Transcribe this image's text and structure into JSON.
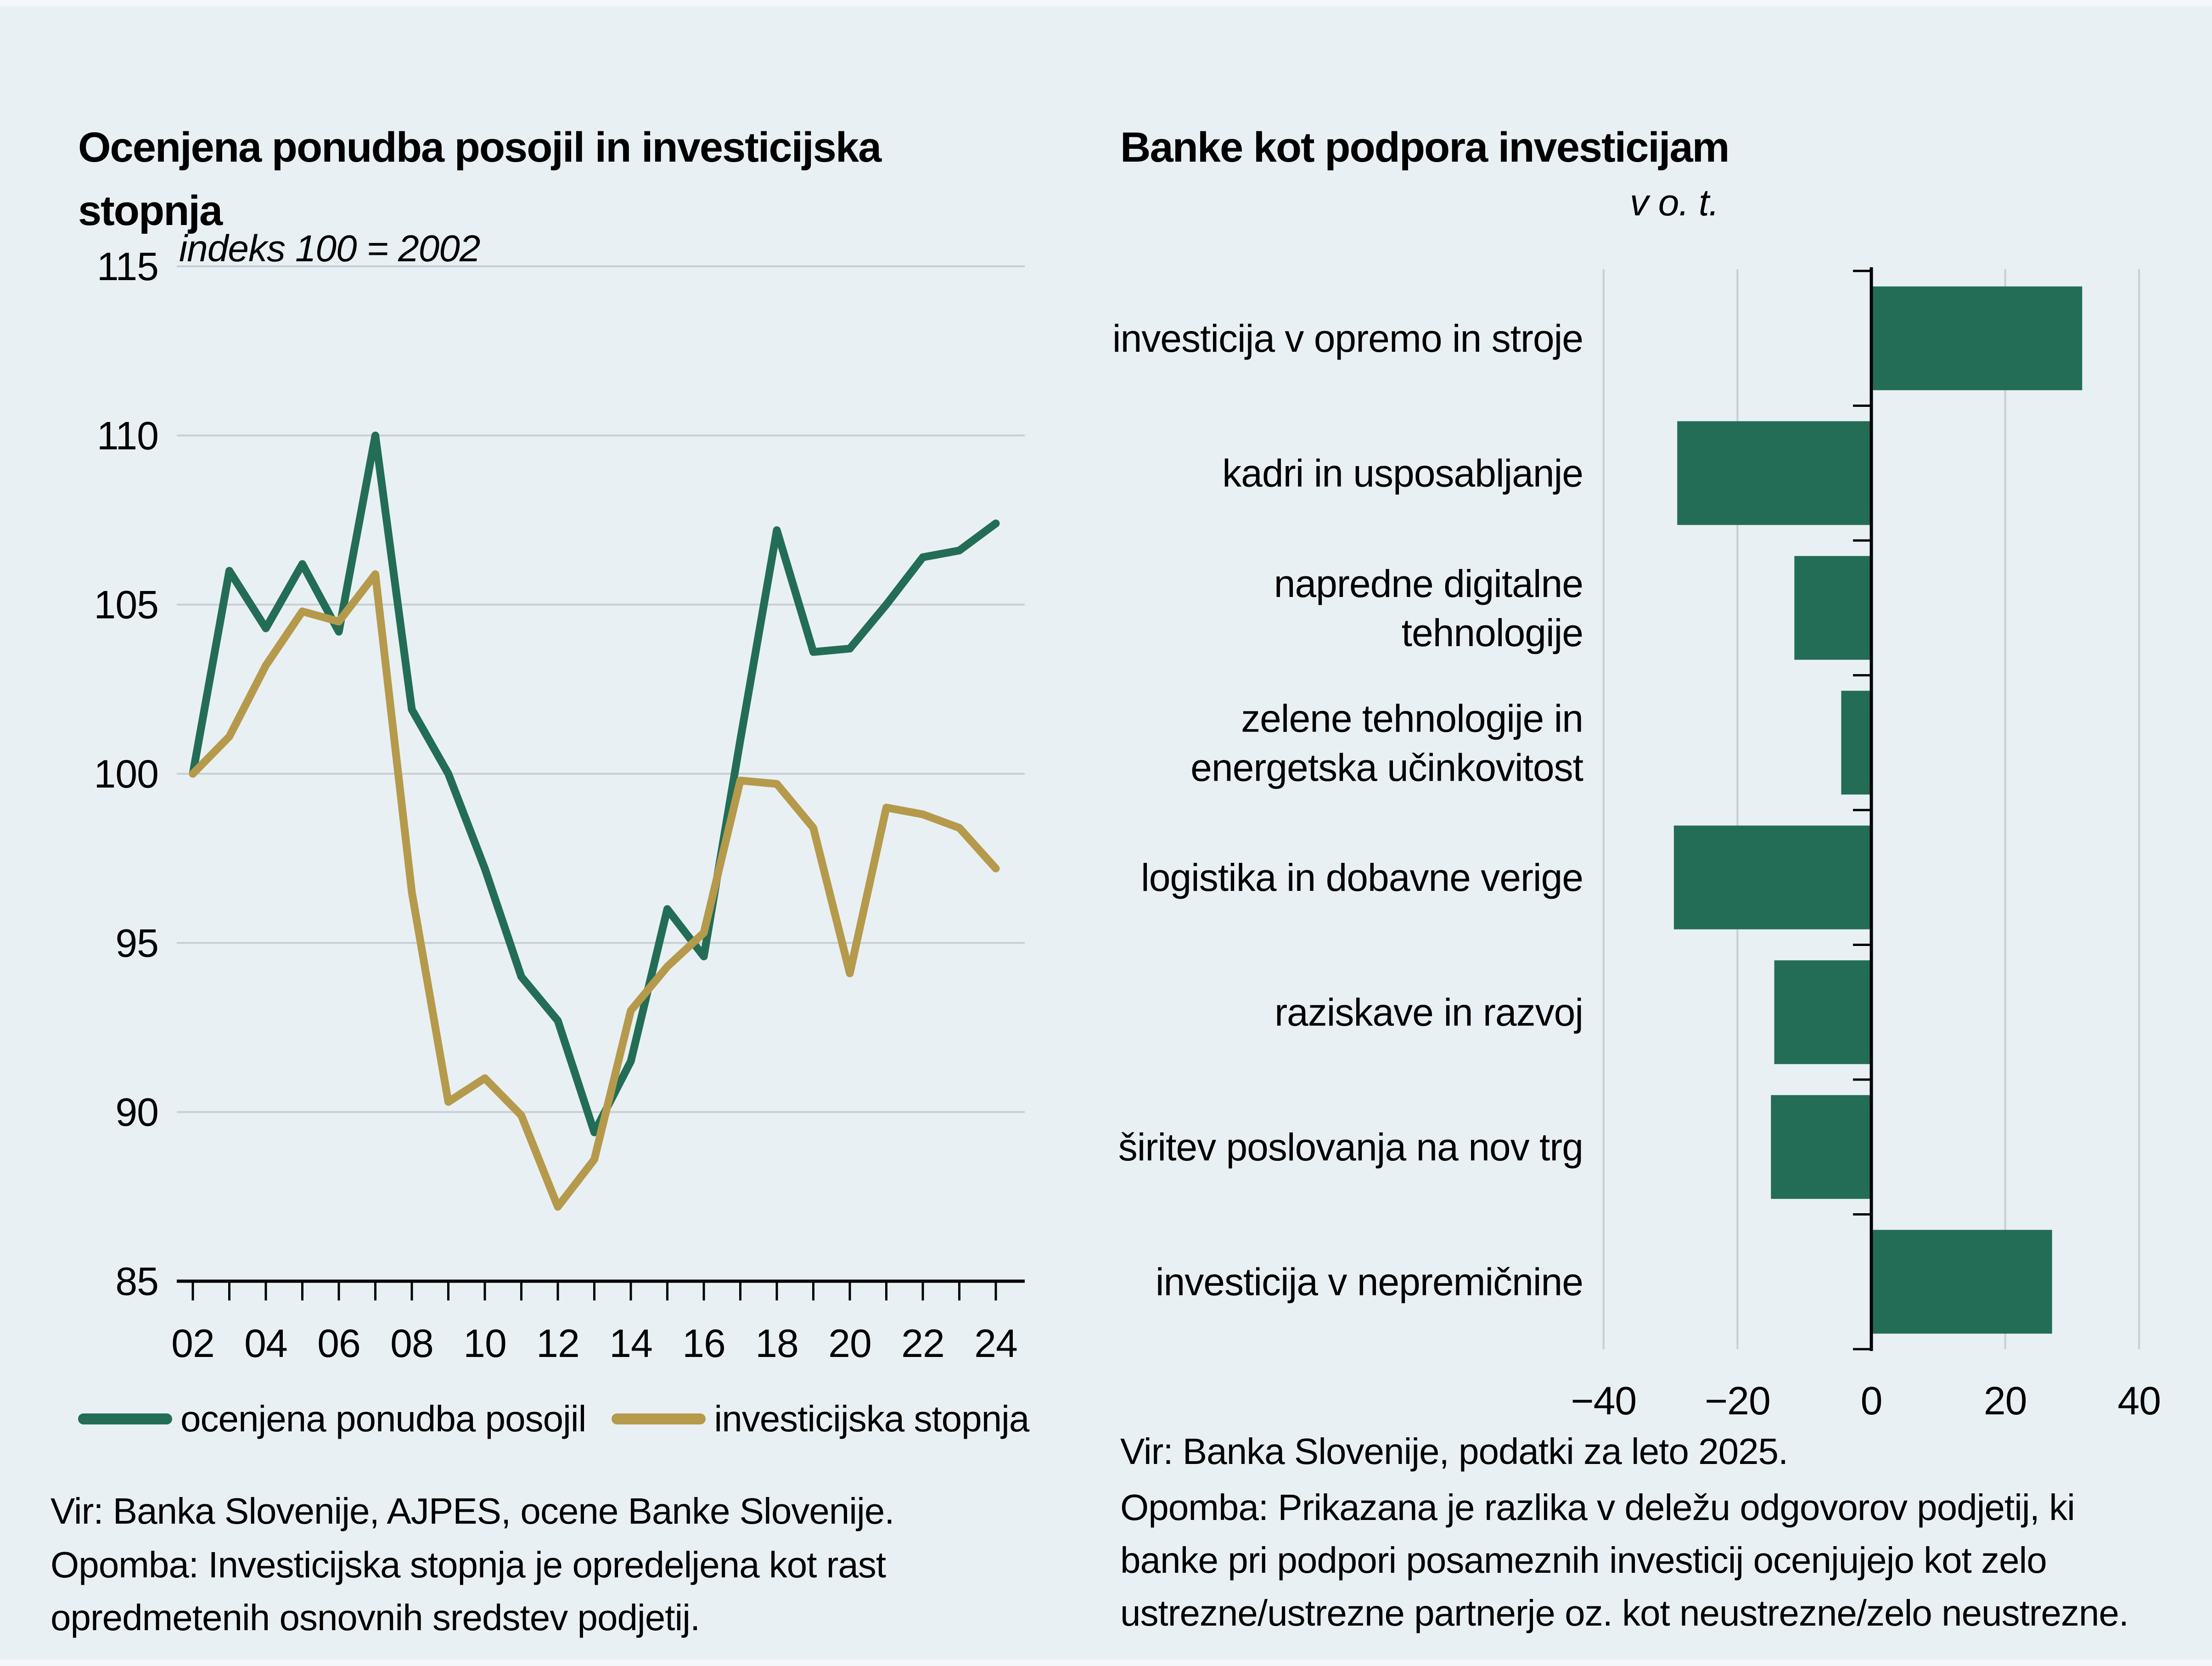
{
  "page": {
    "background_color": "#e9f0f4",
    "accent_green": "#236d56",
    "accent_gold": "#b59a4c",
    "grid_color": "#c7ced4"
  },
  "left_panel": {
    "title": "Ocenjena ponudba posojil in investicijska stopnja",
    "subtitle": "indeks 100 = 2002",
    "legend": [
      {
        "label": "ocenjena ponudba posojil",
        "color": "#236d56"
      },
      {
        "label": "investicijska stopnja",
        "color": "#b59a4c"
      }
    ],
    "source": "Vir: Banka Slovenije, AJPES, ocene Banke Slovenije.",
    "note_lines": [
      "Opomba: Investicijska stopnja je opredeljena kot rast",
      "opredmetenih osnovnih sredstev podjetij."
    ]
  },
  "right_panel": {
    "title": "Banke kot podpora investicijam",
    "unit_label": "v o. t.",
    "source": "Vir: Banka Slovenije, podatki za leto 2025.",
    "note_lines": [
      "Opomba: Prikazana je razlika v deležu odgovorov podjetij, ki",
      "banke pri podpori posameznih investicij ocenjujejo kot zelo",
      "ustrezne/ustrezne partnerje oz. kot neustrezne/zelo neustrezne."
    ]
  },
  "chart_data": [
    {
      "id": "line-chart",
      "type": "line",
      "title": "Ocenjena ponudba posojil in investicijska stopnja",
      "unit_note": "indeks 100 = 2002",
      "x": [
        2002,
        2003,
        2004,
        2005,
        2006,
        2007,
        2008,
        2009,
        2010,
        2011,
        2012,
        2013,
        2014,
        2015,
        2016,
        2017,
        2018,
        2019,
        2020,
        2021,
        2022,
        2023,
        2024
      ],
      "series": [
        {
          "name": "ocenjena ponudba posojil",
          "color": "#236d56",
          "values": [
            100,
            106,
            104.3,
            106.2,
            104.2,
            110,
            101.9,
            100,
            97.2,
            94,
            92.7,
            89.4,
            91.5,
            96,
            94.6,
            101,
            107.2,
            103.6,
            103.7,
            105,
            106.4,
            106.6,
            107.4
          ]
        },
        {
          "name": "investicijska stopnja",
          "color": "#b59a4c",
          "values": [
            100,
            101.1,
            103.2,
            104.8,
            104.5,
            105.9,
            96.5,
            90.3,
            91,
            89.9,
            87.2,
            88.6,
            93,
            94.3,
            95.3,
            99.8,
            99.7,
            98.4,
            94.1,
            99,
            98.8,
            98.4,
            97.2
          ]
        }
      ],
      "ylim": [
        85,
        115
      ],
      "yticks": [
        85,
        90,
        95,
        100,
        105,
        110,
        115
      ],
      "xticks": [
        2002,
        2004,
        2006,
        2008,
        2010,
        2012,
        2014,
        2016,
        2018,
        2020,
        2022,
        2024
      ],
      "xtick_labels": [
        "02",
        "04",
        "06",
        "08",
        "10",
        "12",
        "14",
        "16",
        "18",
        "20",
        "22",
        "24"
      ],
      "grid": true,
      "legend_position": "bottom"
    },
    {
      "id": "bar-chart",
      "type": "bar",
      "orientation": "horizontal",
      "title": "Banke kot podpora investicijam",
      "unit": "v o. t.",
      "categories": [
        "investicija v opremo in stroje",
        "kadri in usposabljanje",
        "napredne digitalne\ntehnologije",
        "zelene tehnologije in\nenergetska učinkovitost",
        "logistika in dobavne verige",
        "raziskave in razvoj",
        "širitev poslovanja na nov trg",
        "investicija v nepremičnine"
      ],
      "values": [
        31.5,
        -29,
        -11.5,
        -4.5,
        -29.5,
        -14.5,
        -15,
        27
      ],
      "bar_color": "#236d56",
      "xlim": [
        -40,
        40
      ],
      "xticks": [
        -40,
        -20,
        0,
        20,
        40
      ],
      "xtick_labels": [
        "−40",
        "−20",
        "0",
        "20",
        "40"
      ],
      "grid": true
    }
  ]
}
